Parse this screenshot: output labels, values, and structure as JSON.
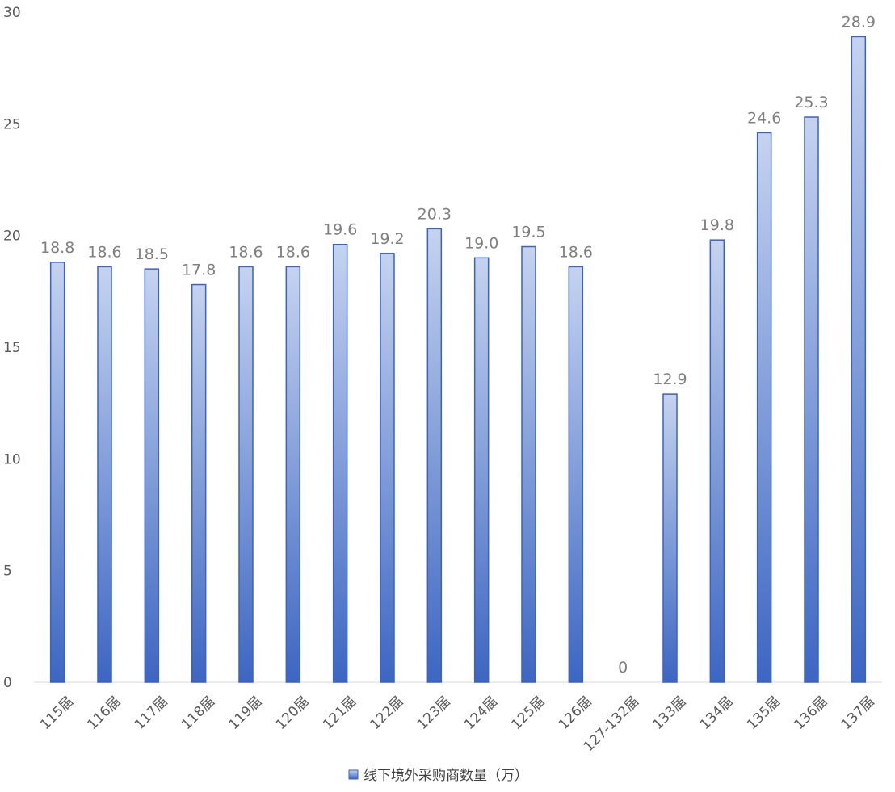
{
  "chart_data": {
    "type": "bar",
    "categories": [
      "115届",
      "116届",
      "117届",
      "118届",
      "119届",
      "120届",
      "121届",
      "122届",
      "123届",
      "124届",
      "125届",
      "126届",
      "127-132届",
      "133届",
      "134届",
      "135届",
      "136届",
      "137届"
    ],
    "series": [
      {
        "name": "线下境外采购商数量（万）",
        "values": [
          18.8,
          18.6,
          18.5,
          17.8,
          18.6,
          18.6,
          19.6,
          19.2,
          20.3,
          19.0,
          19.5,
          18.6,
          0,
          12.9,
          19.8,
          24.6,
          25.3,
          28.9
        ],
        "labels": [
          "18.8",
          "18.6",
          "18.5",
          "17.8",
          "18.6",
          "18.6",
          "19.6",
          "19.2",
          "20.3",
          "19.0",
          "19.5",
          "18.6",
          "0",
          "12.9",
          "19.8",
          "24.6",
          "25.3",
          "28.9"
        ]
      }
    ],
    "yticks": [
      "0",
      "5",
      "10",
      "15",
      "20",
      "25",
      "30"
    ],
    "ylim": [
      0,
      30
    ],
    "grid": false,
    "legend_position": "bottom",
    "colors": {
      "bar_top": "#c5d3ef",
      "bar_bottom": "#3d66c2",
      "bar_stroke": "#3a62c0"
    }
  }
}
